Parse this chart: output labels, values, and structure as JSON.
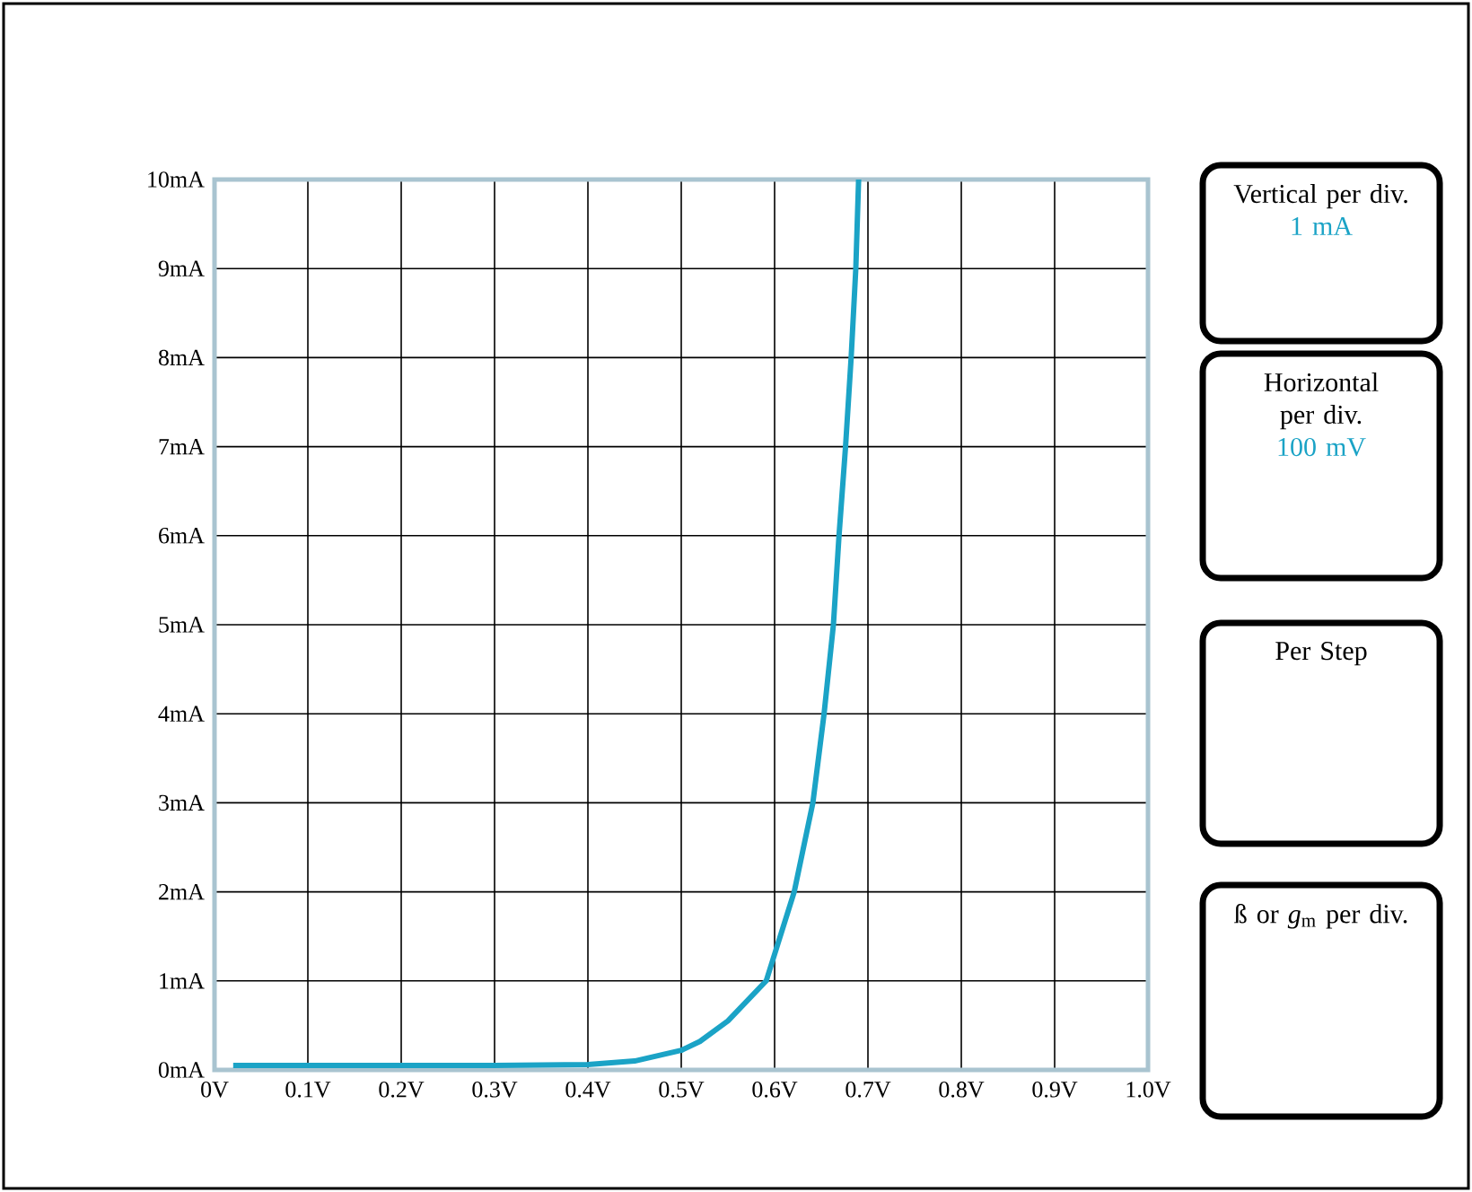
{
  "chart_data": {
    "type": "line",
    "series": [
      {
        "color": "#1ba3c6",
        "x": [
          0.02,
          0.1,
          0.2,
          0.3,
          0.4,
          0.45,
          0.5,
          0.52,
          0.55,
          0.591,
          0.621,
          0.641,
          0.653,
          0.663,
          0.669,
          0.676,
          0.682,
          0.687,
          0.69
        ],
        "values": [
          0.05,
          0.05,
          0.05,
          0.05,
          0.06,
          0.1,
          0.22,
          0.32,
          0.55,
          1,
          2,
          3,
          4,
          5,
          6,
          7,
          8,
          9,
          10
        ]
      }
    ],
    "xlim": [
      0,
      1.0
    ],
    "ylim": [
      0,
      10
    ],
    "xticks": [
      {
        "value": 0,
        "label": "0V"
      },
      {
        "value": 0.1,
        "label": "0.1V"
      },
      {
        "value": 0.2,
        "label": "0.2V"
      },
      {
        "value": 0.3,
        "label": "0.3V"
      },
      {
        "value": 0.4,
        "label": "0.4V"
      },
      {
        "value": 0.5,
        "label": "0.5V"
      },
      {
        "value": 0.6,
        "label": "0.6V"
      },
      {
        "value": 0.7,
        "label": "0.7V"
      },
      {
        "value": 0.8,
        "label": "0.8V"
      },
      {
        "value": 0.9,
        "label": "0.9V"
      },
      {
        "value": 1.0,
        "label": "1.0V"
      }
    ],
    "yticks": [
      {
        "value": 0,
        "label": "0mA"
      },
      {
        "value": 1,
        "label": "1mA"
      },
      {
        "value": 2,
        "label": "2mA"
      },
      {
        "value": 3,
        "label": "3mA"
      },
      {
        "value": 4,
        "label": "4mA"
      },
      {
        "value": 5,
        "label": "5mA"
      },
      {
        "value": 6,
        "label": "6mA"
      },
      {
        "value": 7,
        "label": "7mA"
      },
      {
        "value": 8,
        "label": "8mA"
      },
      {
        "value": 9,
        "label": "9mA"
      },
      {
        "value": 10,
        "label": "10mA"
      }
    ],
    "grid": true,
    "marker": "none",
    "line_style": "solid",
    "annotations": [
      "Vertical per div.",
      "1 mA",
      "Horizontal per div.",
      "100 mV",
      "Per Step",
      "ß or *g*$_{m}$ per div."
    ]
  }
}
